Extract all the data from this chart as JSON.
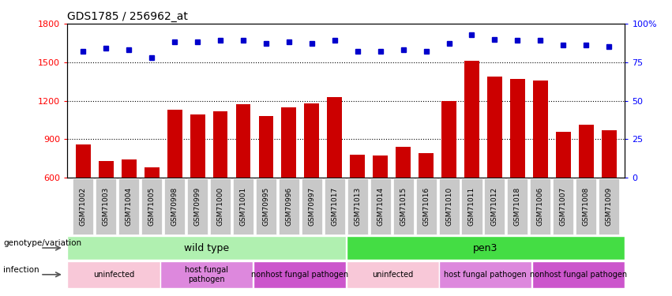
{
  "title": "GDS1785 / 256962_at",
  "samples": [
    "GSM71002",
    "GSM71003",
    "GSM71004",
    "GSM71005",
    "GSM70998",
    "GSM70999",
    "GSM71000",
    "GSM71001",
    "GSM70995",
    "GSM70996",
    "GSM70997",
    "GSM71017",
    "GSM71013",
    "GSM71014",
    "GSM71015",
    "GSM71016",
    "GSM71010",
    "GSM71011",
    "GSM71012",
    "GSM71018",
    "GSM71006",
    "GSM71007",
    "GSM71008",
    "GSM71009"
  ],
  "counts": [
    860,
    730,
    740,
    680,
    1130,
    1090,
    1120,
    1170,
    1080,
    1150,
    1180,
    1230,
    780,
    770,
    840,
    790,
    1200,
    1510,
    1390,
    1370,
    1360,
    960,
    1010,
    970
  ],
  "percentiles": [
    82,
    84,
    83,
    78,
    88,
    88,
    89,
    89,
    87,
    88,
    87,
    89,
    82,
    82,
    83,
    82,
    87,
    93,
    90,
    89,
    89,
    86,
    86,
    85
  ],
  "ylim_left": [
    600,
    1800
  ],
  "ylim_right": [
    0,
    100
  ],
  "yticks_left": [
    600,
    900,
    1200,
    1500,
    1800
  ],
  "yticks_right": [
    0,
    25,
    50,
    75,
    100
  ],
  "bar_color": "#cc0000",
  "dot_color": "#0000cc",
  "plot_bg": "#ffffff",
  "tick_bg": "#c8c8c8",
  "genotype_groups": [
    {
      "label": "wild type",
      "start": 0,
      "end": 11,
      "color": "#b0f0b0"
    },
    {
      "label": "pen3",
      "start": 12,
      "end": 23,
      "color": "#44dd44"
    }
  ],
  "infection_groups": [
    {
      "label": "uninfected",
      "start": 0,
      "end": 3,
      "color": "#f8c8d8"
    },
    {
      "label": "host fungal\npathogen",
      "start": 4,
      "end": 7,
      "color": "#dd88dd"
    },
    {
      "label": "nonhost fungal pathogen",
      "start": 8,
      "end": 11,
      "color": "#cc55cc"
    },
    {
      "label": "uninfected",
      "start": 12,
      "end": 15,
      "color": "#f8c8d8"
    },
    {
      "label": "host fungal pathogen",
      "start": 16,
      "end": 19,
      "color": "#dd88dd"
    },
    {
      "label": "nonhost fungal pathogen",
      "start": 20,
      "end": 23,
      "color": "#cc55cc"
    }
  ]
}
